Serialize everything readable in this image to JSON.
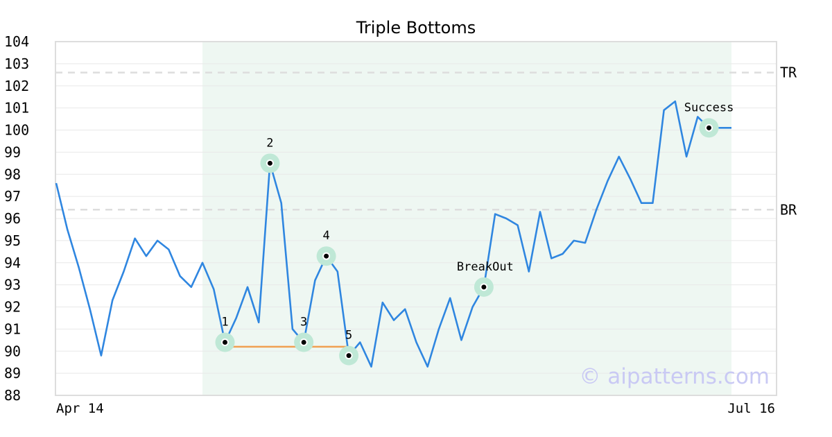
{
  "chart_data": {
    "type": "line",
    "title": "Triple Bottoms",
    "ylim": [
      88,
      104
    ],
    "yticks": [
      88,
      89,
      90,
      91,
      92,
      93,
      94,
      95,
      96,
      97,
      98,
      99,
      100,
      101,
      102,
      103,
      104
    ],
    "x_start_label": "Apr 14",
    "x_end_label": "Jul 16",
    "grid": true,
    "colors": {
      "line": "#2f86e0",
      "shade": "#eef7f2",
      "neckline": "#f0a050",
      "marker_halo": "#bfe8d6",
      "dashed": "#dddddd",
      "grid": "#e8e8e8",
      "frame": "#dddddd",
      "watermark": "#c9c9f4"
    },
    "pattern_range": [
      13,
      60
    ],
    "series": [
      {
        "values": [
          97.6,
          95.5,
          93.8,
          91.9,
          89.8,
          92.3,
          93.6,
          95.1,
          94.3,
          95.0,
          94.6,
          93.4,
          92.9,
          94.0,
          92.8,
          90.4,
          91.5,
          92.9,
          91.3,
          98.5,
          96.7,
          91.0,
          90.4,
          93.2,
          94.3,
          93.6,
          89.8,
          90.4,
          89.3,
          92.2,
          91.4,
          91.9,
          90.4,
          89.3,
          91.0,
          92.4,
          90.5,
          92.0,
          92.9,
          96.2,
          96.0,
          95.7,
          93.6,
          96.3,
          94.2,
          94.4,
          95.0,
          94.9,
          96.4,
          97.7,
          98.8,
          97.8,
          96.7,
          96.7,
          100.9,
          101.3,
          98.8,
          100.6,
          100.1,
          100.1,
          100.1
        ]
      }
    ],
    "neckline": {
      "from_index": 15,
      "to_index": 26,
      "value": 90.2
    },
    "horizontal_lines": [
      {
        "label": "TR",
        "value": 102.6
      },
      {
        "label": "BR",
        "value": 96.4
      }
    ],
    "annotations": [
      {
        "label": "1",
        "index": 15,
        "value": 90.4,
        "pos": "above"
      },
      {
        "label": "2",
        "index": 19,
        "value": 98.5,
        "pos": "above"
      },
      {
        "label": "3",
        "index": 22,
        "value": 90.4,
        "pos": "above"
      },
      {
        "label": "4",
        "index": 24,
        "value": 94.3,
        "pos": "above"
      },
      {
        "label": "5",
        "index": 26,
        "value": 89.8,
        "pos": "above"
      },
      {
        "label": "BreakOut",
        "index": 38,
        "value": 92.9,
        "pos": "above-left"
      },
      {
        "label": "Success",
        "index": 58,
        "value": 100.1,
        "pos": "above"
      }
    ],
    "watermark": "© aipatterns.com"
  }
}
